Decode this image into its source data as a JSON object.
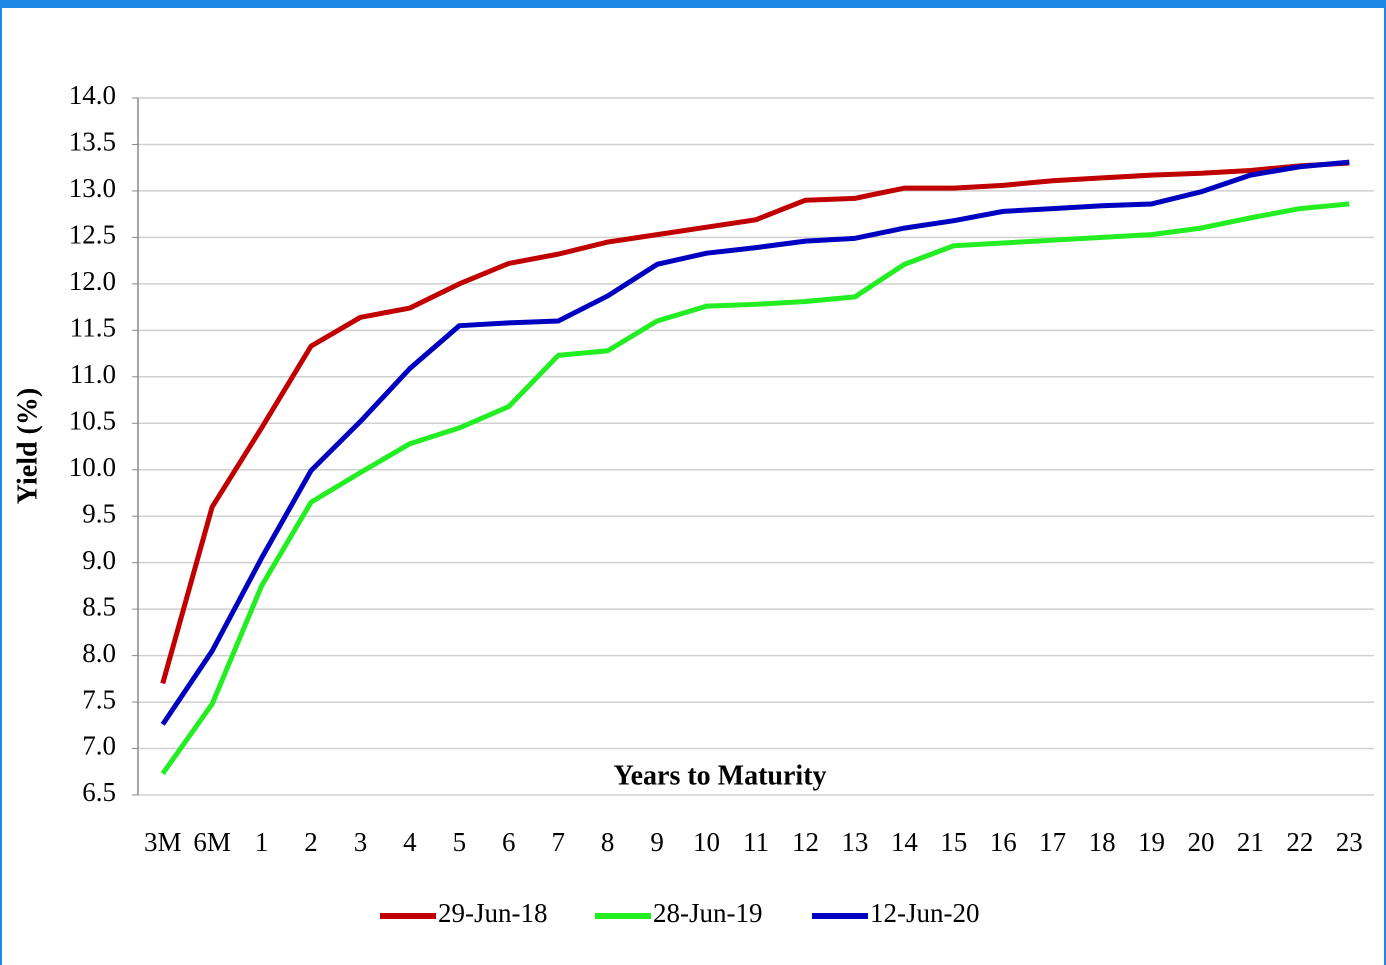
{
  "chart_data": {
    "type": "line",
    "x_label": "Years to Maturity",
    "y_label": "Yield (%)",
    "categories": [
      "3M",
      "6M",
      "1",
      "2",
      "3",
      "4",
      "5",
      "6",
      "7",
      "8",
      "9",
      "10",
      "11",
      "12",
      "13",
      "14",
      "15",
      "16",
      "17",
      "18",
      "19",
      "20",
      "21",
      "22",
      "23"
    ],
    "series": [
      {
        "name": "29-Jun-18",
        "color": "#c00000",
        "values": [
          7.7,
          9.6,
          10.45,
          11.33,
          11.64,
          11.74,
          12.0,
          12.22,
          12.32,
          12.45,
          12.53,
          12.61,
          12.69,
          12.9,
          12.92,
          13.03,
          13.03,
          13.06,
          13.11,
          13.14,
          13.17,
          13.19,
          13.22,
          13.27,
          13.3
        ]
      },
      {
        "name": "28-Jun-19",
        "color": "#22ee22",
        "values": [
          6.73,
          7.48,
          8.75,
          9.65,
          9.97,
          10.28,
          10.45,
          10.68,
          11.23,
          11.28,
          11.6,
          11.76,
          11.78,
          11.81,
          11.86,
          12.21,
          12.41,
          12.44,
          12.47,
          12.5,
          12.53,
          12.6,
          12.71,
          12.81,
          12.86
        ]
      },
      {
        "name": "12-Jun-20",
        "color": "#0000c0",
        "values": [
          7.26,
          8.05,
          9.05,
          9.99,
          10.52,
          11.09,
          11.55,
          11.58,
          11.6,
          11.87,
          12.21,
          12.33,
          12.39,
          12.46,
          12.49,
          12.6,
          12.68,
          12.78,
          12.81,
          12.84,
          12.86,
          12.99,
          13.17,
          13.26,
          13.31
        ]
      }
    ],
    "ylim": [
      6.5,
      14
    ],
    "yticks": [
      6.5,
      {
        "value": 7,
        "label": "7.0"
      },
      7.5,
      {
        "value": 8,
        "label": "8.0"
      },
      8.5,
      {
        "value": 9,
        "label": "9.0"
      },
      9.5,
      {
        "value": 10,
        "label": "10.0"
      },
      10.5,
      {
        "value": 11,
        "label": "11.0"
      },
      11.5,
      {
        "value": 12,
        "label": "12.0"
      },
      12.5,
      {
        "value": 13,
        "label": "13.0"
      },
      13.5,
      {
        "value": 14,
        "label": "14.0"
      }
    ],
    "grid": true,
    "legend": "bottom"
  }
}
